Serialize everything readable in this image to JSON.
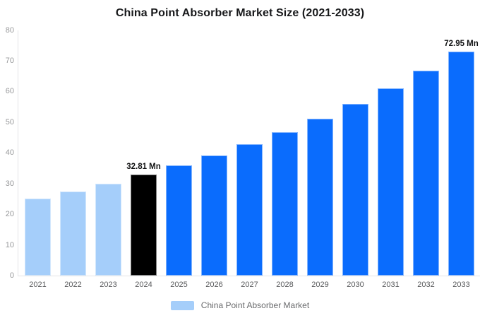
{
  "chart_data": {
    "type": "bar",
    "title": "China Point Absorber Market Size (2021-2033)",
    "categories": [
      "2021",
      "2022",
      "2023",
      "2024",
      "2025",
      "2026",
      "2027",
      "2028",
      "2029",
      "2030",
      "2031",
      "2032",
      "2033"
    ],
    "values": [
      25.1,
      27.5,
      30.0,
      32.81,
      35.9,
      39.2,
      42.8,
      46.8,
      51.2,
      55.9,
      61.1,
      66.8,
      72.95
    ],
    "unit": "Mn",
    "bar_colors": [
      "#a5cefa",
      "#a5cefa",
      "#a5cefa",
      "#000000",
      "#0a6cfd",
      "#0a6cfd",
      "#0a6cfd",
      "#0a6cfd",
      "#0a6cfd",
      "#0a6cfd",
      "#0a6cfd",
      "#0a6cfd",
      "#0a6cfd"
    ],
    "annotations": [
      {
        "index": 3,
        "label": "32.81 Mn"
      },
      {
        "index": 12,
        "label": "72.95 Mn"
      }
    ],
    "xlabel": "",
    "ylabel": "",
    "ylim": [
      0,
      80
    ],
    "yticks": [
      0,
      10,
      20,
      30,
      40,
      50,
      60,
      70,
      80
    ],
    "grid": false,
    "legend": {
      "position": "bottom",
      "label": "China Point Absorber Market",
      "swatch_color": "#a5cefa"
    },
    "colors": {
      "historical": "#a5cefa",
      "base_year": "#000000",
      "forecast": "#0a6cfd",
      "axis_line": "#e3e4e6",
      "ytick_text": "#98999b",
      "xtick_text": "#58595b",
      "title_text": "#17181a"
    }
  }
}
